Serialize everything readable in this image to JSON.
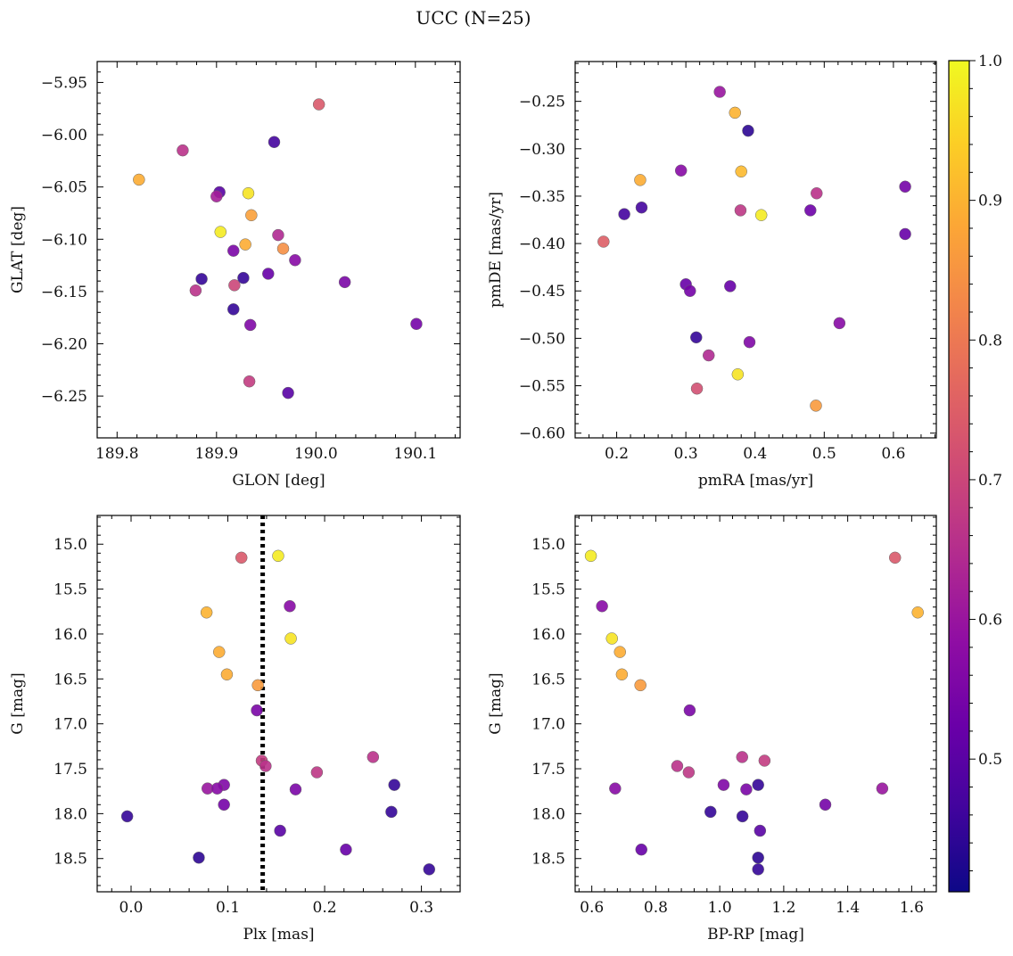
{
  "figure": {
    "title": "UCC (N=25)",
    "colorbar": {
      "colormap": "plasma",
      "range": [
        0.405,
        1.0
      ],
      "major_ticks": [
        0.5,
        0.6,
        0.7,
        0.8,
        0.9,
        1.0
      ],
      "tick_labels": [
        "0.5",
        "0.6",
        "0.7",
        "0.8",
        "0.9",
        "1.0"
      ]
    }
  },
  "chart_data": [
    {
      "id": "glon-glat",
      "type": "scatter",
      "xlabel": "GLON [deg]",
      "ylabel": "GLAT [deg]",
      "xlim": [
        189.78,
        190.145
      ],
      "ylim": [
        -6.29,
        -5.93
      ],
      "xticks": [
        189.8,
        189.9,
        190.0,
        190.1
      ],
      "xtick_labels": [
        "189.8",
        "189.9",
        "190.0",
        "190.1"
      ],
      "yticks": [
        -6.25,
        -6.2,
        -6.15,
        -6.1,
        -6.05,
        -6.0,
        -5.95
      ],
      "ytick_labels": [
        "−6.25",
        "−6.20",
        "−6.15",
        "−6.10",
        "−6.05",
        "−6.00",
        "−5.95"
      ],
      "points": [
        {
          "x": 190.003,
          "y": -5.971,
          "c": 0.74
        },
        {
          "x": 189.958,
          "y": -6.007,
          "c": 0.47
        },
        {
          "x": 189.866,
          "y": -6.015,
          "c": 0.66
        },
        {
          "x": 189.822,
          "y": -6.043,
          "c": 0.89
        },
        {
          "x": 189.903,
          "y": -6.055,
          "c": 0.5
        },
        {
          "x": 189.9,
          "y": -6.059,
          "c": 0.62
        },
        {
          "x": 189.932,
          "y": -6.056,
          "c": 0.97
        },
        {
          "x": 189.935,
          "y": -6.077,
          "c": 0.87
        },
        {
          "x": 189.904,
          "y": -6.093,
          "c": 0.98
        },
        {
          "x": 189.962,
          "y": -6.096,
          "c": 0.64
        },
        {
          "x": 189.929,
          "y": -6.105,
          "c": 0.89
        },
        {
          "x": 189.967,
          "y": -6.109,
          "c": 0.84
        },
        {
          "x": 189.917,
          "y": -6.111,
          "c": 0.55
        },
        {
          "x": 189.979,
          "y": -6.12,
          "c": 0.57
        },
        {
          "x": 189.952,
          "y": -6.133,
          "c": 0.52
        },
        {
          "x": 189.927,
          "y": -6.137,
          "c": 0.45
        },
        {
          "x": 189.885,
          "y": -6.138,
          "c": 0.45
        },
        {
          "x": 190.029,
          "y": -6.141,
          "c": 0.55
        },
        {
          "x": 189.918,
          "y": -6.144,
          "c": 0.7
        },
        {
          "x": 189.879,
          "y": -6.149,
          "c": 0.66
        },
        {
          "x": 189.917,
          "y": -6.167,
          "c": 0.45
        },
        {
          "x": 190.101,
          "y": -6.181,
          "c": 0.54
        },
        {
          "x": 189.934,
          "y": -6.182,
          "c": 0.56
        },
        {
          "x": 189.933,
          "y": -6.236,
          "c": 0.68
        },
        {
          "x": 189.972,
          "y": -6.247,
          "c": 0.5
        }
      ]
    },
    {
      "id": "pmra-pmde",
      "type": "scatter",
      "xlabel": "pmRA [mas/yr]",
      "ylabel": "pmDE [mas/yr]",
      "xlim": [
        0.14,
        0.662
      ],
      "ylim": [
        -0.605,
        -0.208
      ],
      "xticks": [
        0.2,
        0.3,
        0.4,
        0.5,
        0.6
      ],
      "xtick_labels": [
        "0.2",
        "0.3",
        "0.4",
        "0.5",
        "0.6"
      ],
      "yticks": [
        -0.6,
        -0.55,
        -0.5,
        -0.45,
        -0.4,
        -0.35,
        -0.3,
        -0.25
      ],
      "ytick_labels": [
        "−0.60",
        "−0.55",
        "−0.50",
        "−0.45",
        "−0.40",
        "−0.35",
        "−0.30",
        "−0.25"
      ],
      "points": [
        {
          "x": 0.349,
          "y": -0.24,
          "c": 0.6
        },
        {
          "x": 0.371,
          "y": -0.262,
          "c": 0.9
        },
        {
          "x": 0.39,
          "y": -0.281,
          "c": 0.44
        },
        {
          "x": 0.293,
          "y": -0.323,
          "c": 0.57
        },
        {
          "x": 0.38,
          "y": -0.324,
          "c": 0.91
        },
        {
          "x": 0.234,
          "y": -0.333,
          "c": 0.89
        },
        {
          "x": 0.617,
          "y": -0.34,
          "c": 0.54
        },
        {
          "x": 0.489,
          "y": -0.347,
          "c": 0.66
        },
        {
          "x": 0.236,
          "y": -0.362,
          "c": 0.47
        },
        {
          "x": 0.379,
          "y": -0.365,
          "c": 0.67
        },
        {
          "x": 0.48,
          "y": -0.365,
          "c": 0.53
        },
        {
          "x": 0.211,
          "y": -0.369,
          "c": 0.47
        },
        {
          "x": 0.409,
          "y": -0.37,
          "c": 0.98
        },
        {
          "x": 0.617,
          "y": -0.39,
          "c": 0.52
        },
        {
          "x": 0.181,
          "y": -0.398,
          "c": 0.75
        },
        {
          "x": 0.3,
          "y": -0.443,
          "c": 0.52
        },
        {
          "x": 0.364,
          "y": -0.445,
          "c": 0.52
        },
        {
          "x": 0.306,
          "y": -0.45,
          "c": 0.54
        },
        {
          "x": 0.522,
          "y": -0.484,
          "c": 0.57
        },
        {
          "x": 0.315,
          "y": -0.499,
          "c": 0.45
        },
        {
          "x": 0.392,
          "y": -0.504,
          "c": 0.56
        },
        {
          "x": 0.333,
          "y": -0.518,
          "c": 0.64
        },
        {
          "x": 0.375,
          "y": -0.538,
          "c": 0.97
        },
        {
          "x": 0.316,
          "y": -0.553,
          "c": 0.72
        },
        {
          "x": 0.488,
          "y": -0.571,
          "c": 0.86
        }
      ]
    },
    {
      "id": "plx-g",
      "type": "scatter",
      "xlabel": "Plx [mas]",
      "ylabel": "G [mag]",
      "xlim": [
        -0.035,
        0.34
      ],
      "ylim": [
        18.87,
        14.68
      ],
      "y_inverted": true,
      "xticks": [
        0.0,
        0.1,
        0.2,
        0.3
      ],
      "xtick_labels": [
        "0.0",
        "0.1",
        "0.2",
        "0.3"
      ],
      "yticks": [
        15.0,
        15.5,
        16.0,
        16.5,
        17.0,
        17.5,
        18.0,
        18.5
      ],
      "ytick_labels": [
        "15.0",
        "15.5",
        "16.0",
        "16.5",
        "17.0",
        "17.5",
        "18.0",
        "18.5"
      ],
      "reference_line": {
        "x": 0.136,
        "style": "dotted",
        "color": "#000000"
      },
      "points": [
        {
          "x": 0.114,
          "y": 15.15,
          "c": 0.74
        },
        {
          "x": 0.152,
          "y": 15.13,
          "c": 0.98
        },
        {
          "x": 0.164,
          "y": 15.69,
          "c": 0.57
        },
        {
          "x": 0.078,
          "y": 15.76,
          "c": 0.9
        },
        {
          "x": 0.165,
          "y": 16.05,
          "c": 0.97
        },
        {
          "x": 0.091,
          "y": 16.2,
          "c": 0.89
        },
        {
          "x": 0.099,
          "y": 16.45,
          "c": 0.89
        },
        {
          "x": 0.131,
          "y": 16.57,
          "c": 0.86
        },
        {
          "x": 0.13,
          "y": 16.85,
          "c": 0.55
        },
        {
          "x": 0.25,
          "y": 17.37,
          "c": 0.66
        },
        {
          "x": 0.135,
          "y": 17.41,
          "c": 0.68
        },
        {
          "x": 0.139,
          "y": 17.47,
          "c": 0.66
        },
        {
          "x": 0.192,
          "y": 17.54,
          "c": 0.67
        },
        {
          "x": 0.272,
          "y": 17.68,
          "c": 0.45
        },
        {
          "x": 0.096,
          "y": 17.68,
          "c": 0.56
        },
        {
          "x": 0.079,
          "y": 17.72,
          "c": 0.6
        },
        {
          "x": 0.089,
          "y": 17.72,
          "c": 0.57
        },
        {
          "x": 0.17,
          "y": 17.73,
          "c": 0.55
        },
        {
          "x": 0.096,
          "y": 17.9,
          "c": 0.54
        },
        {
          "x": 0.269,
          "y": 17.98,
          "c": 0.45
        },
        {
          "x": -0.004,
          "y": 18.03,
          "c": 0.45
        },
        {
          "x": 0.154,
          "y": 18.19,
          "c": 0.5
        },
        {
          "x": 0.222,
          "y": 18.4,
          "c": 0.52
        },
        {
          "x": 0.07,
          "y": 18.49,
          "c": 0.44
        },
        {
          "x": 0.308,
          "y": 18.62,
          "c": 0.45
        }
      ]
    },
    {
      "id": "bprp-g",
      "type": "scatter",
      "xlabel": "BP-RP [mag]",
      "ylabel": "G [mag]",
      "xlim": [
        0.548,
        1.677
      ],
      "ylim": [
        18.87,
        14.68
      ],
      "y_inverted": true,
      "xticks": [
        0.6,
        0.8,
        1.0,
        1.2,
        1.4,
        1.6
      ],
      "xtick_labels": [
        "0.6",
        "0.8",
        "1.0",
        "1.2",
        "1.4",
        "1.6"
      ],
      "yticks": [
        15.0,
        15.5,
        16.0,
        16.5,
        17.0,
        17.5,
        18.0,
        18.5
      ],
      "ytick_labels": [
        "15.0",
        "15.5",
        "16.0",
        "16.5",
        "17.0",
        "17.5",
        "18.0",
        "18.5"
      ],
      "points": [
        {
          "x": 0.597,
          "y": 15.13,
          "c": 0.98
        },
        {
          "x": 1.548,
          "y": 15.15,
          "c": 0.74
        },
        {
          "x": 0.632,
          "y": 15.69,
          "c": 0.57
        },
        {
          "x": 1.619,
          "y": 15.76,
          "c": 0.9
        },
        {
          "x": 0.663,
          "y": 16.05,
          "c": 0.97
        },
        {
          "x": 0.688,
          "y": 16.2,
          "c": 0.89
        },
        {
          "x": 0.694,
          "y": 16.45,
          "c": 0.89
        },
        {
          "x": 0.752,
          "y": 16.57,
          "c": 0.86
        },
        {
          "x": 0.906,
          "y": 16.85,
          "c": 0.55
        },
        {
          "x": 0.867,
          "y": 17.47,
          "c": 0.66
        },
        {
          "x": 0.903,
          "y": 17.54,
          "c": 0.67
        },
        {
          "x": 1.07,
          "y": 17.37,
          "c": 0.66
        },
        {
          "x": 1.14,
          "y": 17.41,
          "c": 0.68
        },
        {
          "x": 1.012,
          "y": 17.68,
          "c": 0.56
        },
        {
          "x": 1.12,
          "y": 17.68,
          "c": 0.45
        },
        {
          "x": 0.673,
          "y": 17.72,
          "c": 0.57
        },
        {
          "x": 1.083,
          "y": 17.73,
          "c": 0.55
        },
        {
          "x": 1.508,
          "y": 17.72,
          "c": 0.6
        },
        {
          "x": 1.33,
          "y": 17.9,
          "c": 0.54
        },
        {
          "x": 0.971,
          "y": 17.98,
          "c": 0.45
        },
        {
          "x": 1.071,
          "y": 18.03,
          "c": 0.45
        },
        {
          "x": 1.126,
          "y": 18.19,
          "c": 0.5
        },
        {
          "x": 0.755,
          "y": 18.4,
          "c": 0.52
        },
        {
          "x": 1.12,
          "y": 18.49,
          "c": 0.44
        },
        {
          "x": 1.12,
          "y": 18.62,
          "c": 0.45
        }
      ]
    }
  ]
}
